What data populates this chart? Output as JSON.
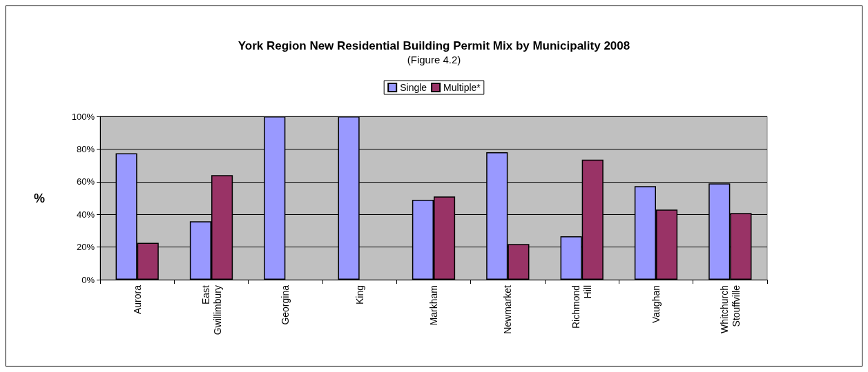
{
  "chart_data": {
    "type": "bar",
    "title": "York Region New Residential Building Permit Mix by Municipality 2008",
    "subtitle": "(Figure 4.2)",
    "ylabel": "%",
    "categories": [
      "Aurora",
      "East\nGwillimbury",
      "Georgina",
      "King",
      "Markham",
      "Newmarket",
      "Richmond\nHill",
      "Vaughan",
      "Whitchurch\nStouffville"
    ],
    "series": [
      {
        "name": "Single",
        "color": "#9999ff",
        "values": [
          77.4,
          35.8,
          100,
          100,
          48.9,
          78.1,
          26.6,
          57.3,
          59.0
        ]
      },
      {
        "name": "Multiple*",
        "color": "#993366",
        "values": [
          22.6,
          64.0,
          0,
          0,
          50.9,
          21.8,
          73.5,
          42.9,
          40.8
        ]
      }
    ],
    "ylim": [
      0,
      100
    ],
    "yticks": [
      {
        "value": 0,
        "label": "0%"
      },
      {
        "value": 20,
        "label": "20%"
      },
      {
        "value": 40,
        "label": "40%"
      },
      {
        "value": 60,
        "label": "60%"
      },
      {
        "value": 80,
        "label": "80%"
      },
      {
        "value": 100,
        "label": "100%"
      }
    ],
    "grid": "y",
    "legend": "top"
  }
}
